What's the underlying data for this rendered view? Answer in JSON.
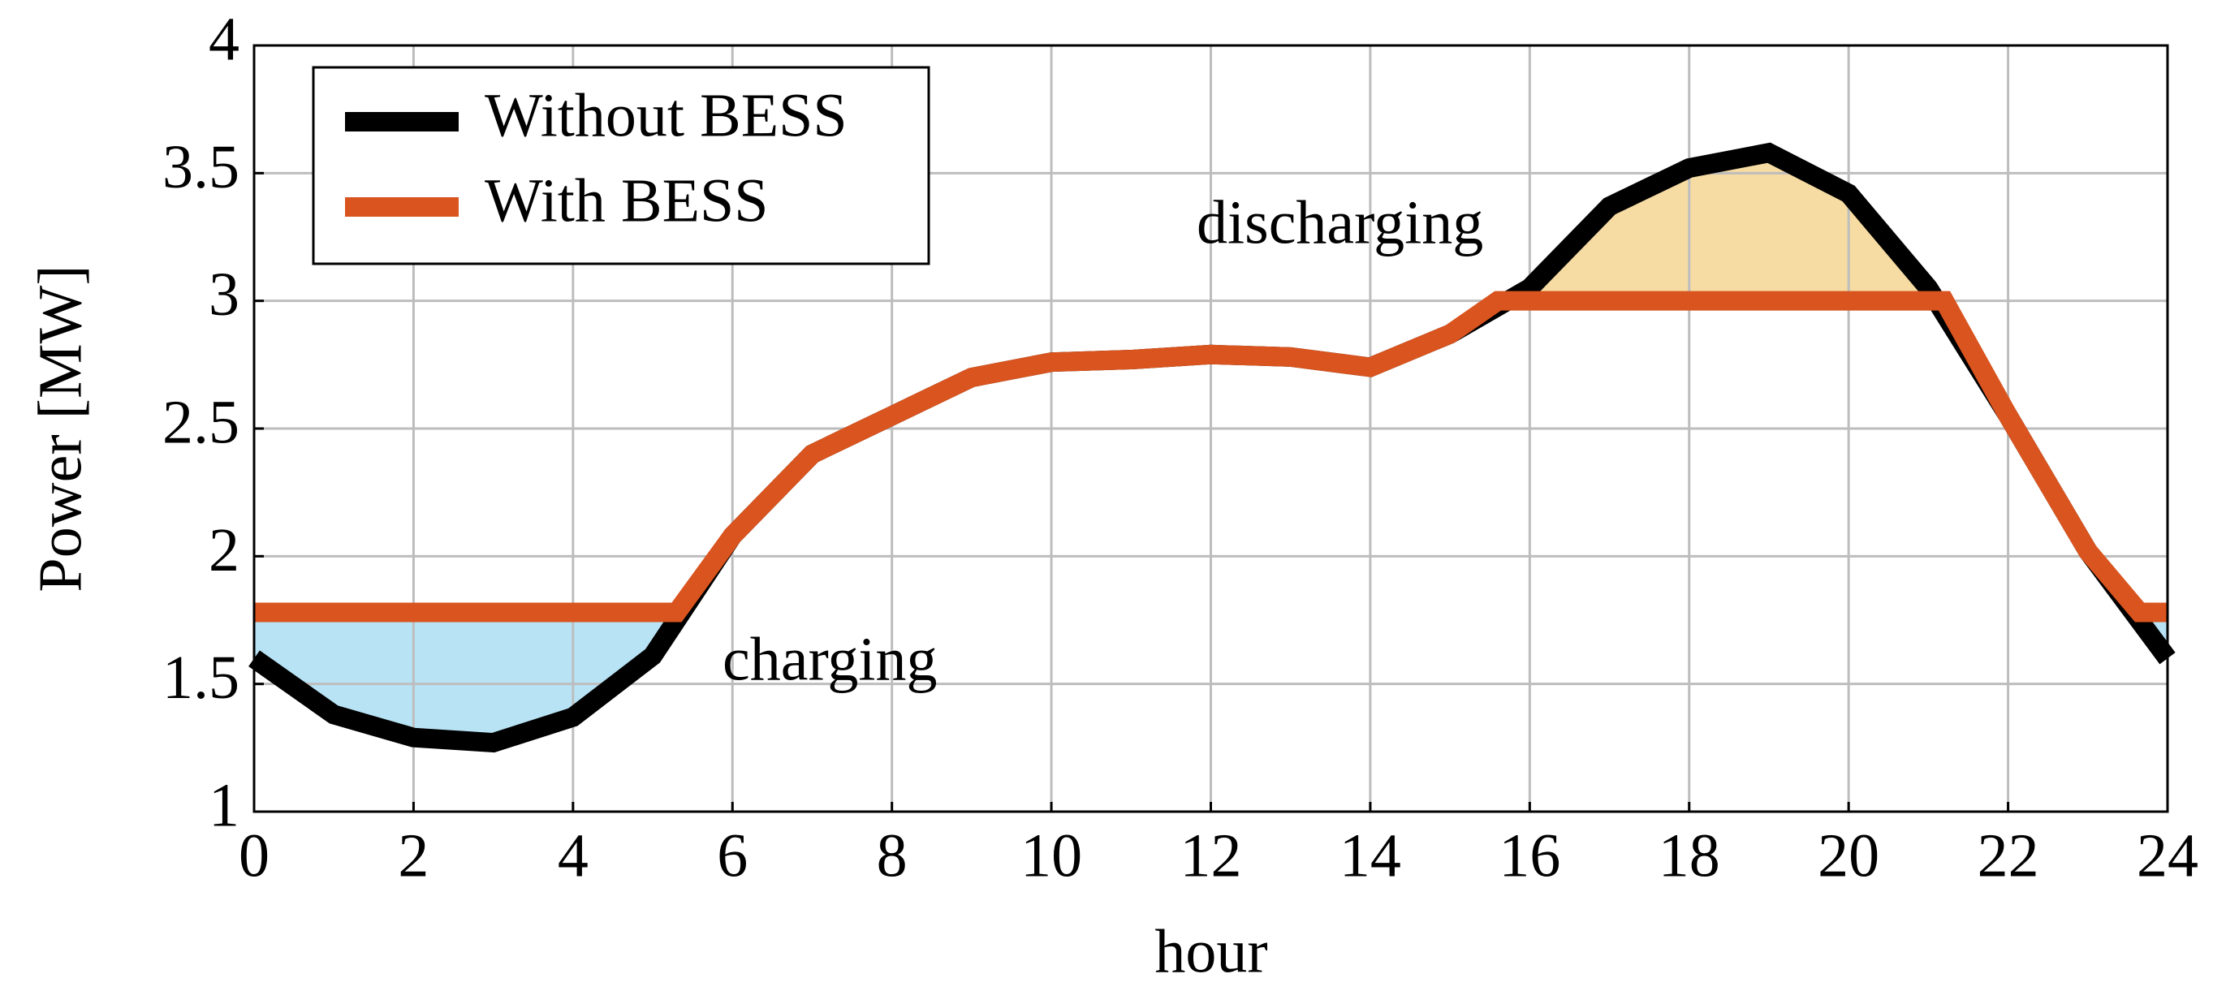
{
  "chart_data": {
    "type": "line",
    "xlabel": "hour",
    "ylabel": "Power [MW]",
    "annotations": [
      "discharging",
      "charging"
    ],
    "xlim": [
      0,
      24
    ],
    "xticks": [
      0,
      2,
      4,
      6,
      8,
      10,
      12,
      14,
      16,
      18,
      20,
      22,
      24
    ],
    "ylim": [
      1,
      4
    ],
    "yticks": [
      1,
      1.5,
      2,
      2.5,
      3,
      3.5,
      4
    ],
    "grid": true,
    "legend": "upper left",
    "fill_colors": [
      "#b8e3f5",
      "#f6dba3"
    ],
    "series": [
      {
        "name": "Without BESS",
        "color": "#000000",
        "x": [
          0,
          1,
          2,
          3,
          4,
          5,
          6,
          7,
          8,
          9,
          10,
          11,
          12,
          13,
          14,
          15,
          16,
          17,
          18,
          19,
          20,
          21,
          22,
          23,
          24
        ],
        "values": [
          1.6,
          1.38,
          1.29,
          1.27,
          1.37,
          1.61,
          2.08,
          2.4,
          2.55,
          2.7,
          2.76,
          2.77,
          2.79,
          2.78,
          2.74,
          2.87,
          3.05,
          3.37,
          3.52,
          3.58,
          3.42,
          3.05,
          2.55,
          2.02,
          1.6
        ]
      },
      {
        "name": "With BESS",
        "color": "#d9541e",
        "x": [
          0,
          5.3,
          6,
          7,
          8,
          9,
          10,
          11,
          12,
          13,
          14,
          15,
          15.6,
          21.2,
          22,
          23,
          23.65,
          24
        ],
        "values": [
          1.78,
          1.78,
          2.08,
          2.4,
          2.55,
          2.7,
          2.76,
          2.77,
          2.79,
          2.78,
          2.74,
          2.87,
          3.0,
          3.0,
          2.55,
          2.02,
          1.78,
          1.78
        ]
      }
    ]
  }
}
